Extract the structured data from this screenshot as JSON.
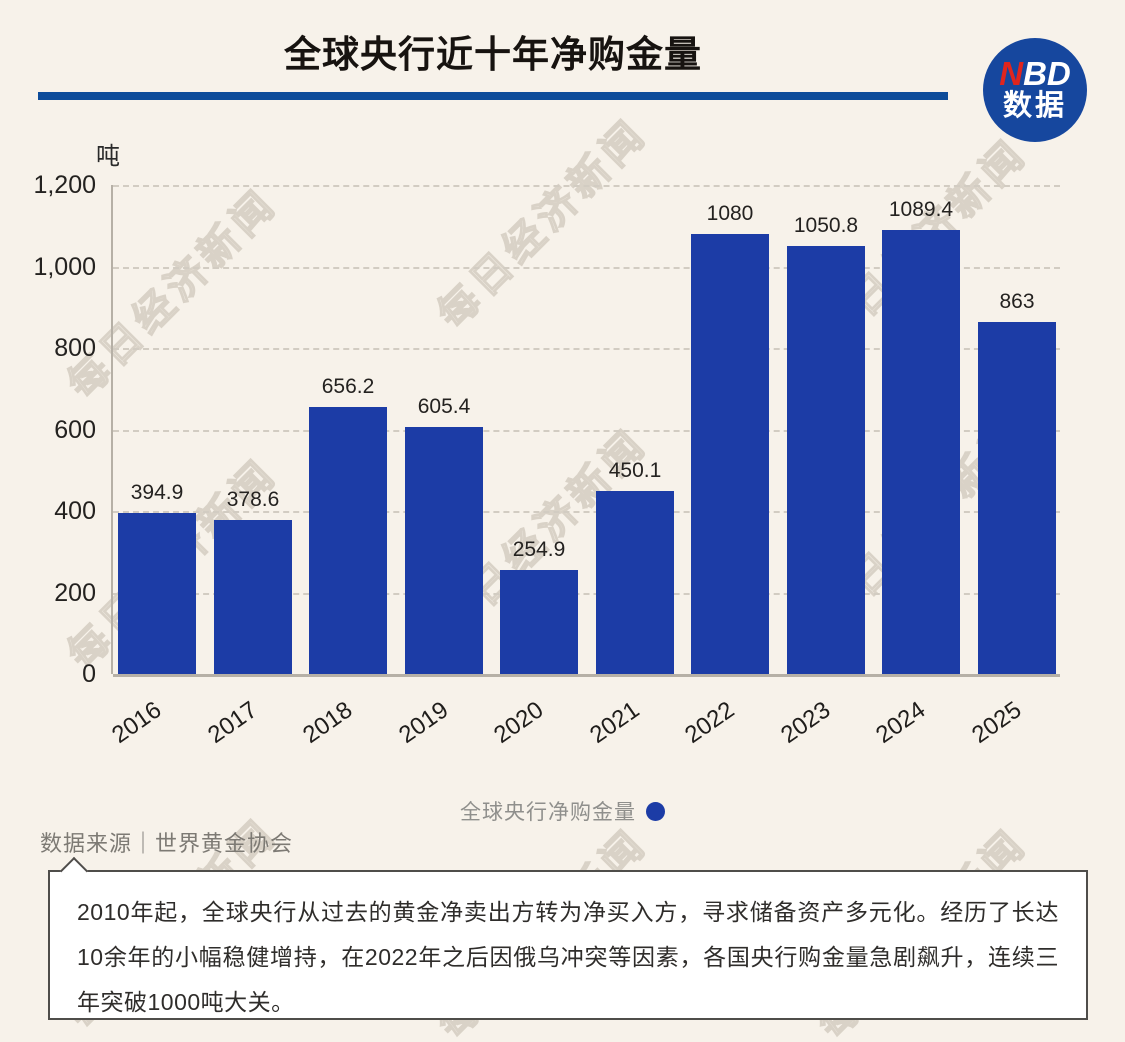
{
  "header": {
    "title": "全球央行近十年净购金量"
  },
  "logo": {
    "line1_red": "N",
    "line1_rest": "BD",
    "line2": "数据"
  },
  "watermark": {
    "text": "每日经济新闻"
  },
  "chart_data": {
    "type": "bar",
    "title": "全球央行近十年净购金量",
    "unit_label": "吨",
    "xlabel": "",
    "ylabel": "吨",
    "categories": [
      "2016",
      "2017",
      "2018",
      "2019",
      "2020",
      "2021",
      "2022",
      "2023",
      "2024",
      "2025"
    ],
    "values": [
      394.9,
      378.6,
      656.2,
      605.4,
      254.9,
      450.1,
      1080,
      1050.8,
      1089.4,
      863
    ],
    "value_labels": [
      "394.9",
      "378.6",
      "656.2",
      "605.4",
      "254.9",
      "450.1",
      "1080",
      "1050.8",
      "1089.4",
      "863"
    ],
    "ylim": [
      0,
      1200
    ],
    "y_ticks": [
      {
        "label": "0",
        "value": 0
      },
      {
        "label": "200",
        "value": 200
      },
      {
        "label": "400",
        "value": 400
      },
      {
        "label": "600",
        "value": 600
      },
      {
        "label": "800",
        "value": 800
      },
      {
        "label": "1,000",
        "value": 1000
      },
      {
        "label": "1,200",
        "value": 1200
      }
    ],
    "grid": true,
    "legend_position": "bottom",
    "series_name": "全球央行净购金量",
    "bar_color": "#1C3CA6"
  },
  "legend": {
    "label": "全球央行净购金量",
    "dot_color": "#1C3CA6"
  },
  "source": {
    "text": "数据来源｜世界黄金协会"
  },
  "note": {
    "text": "2010年起，全球央行从过去的黄金净卖出方转为净买入方，寻求储备资产多元化。经历了长达10余年的小幅稳健增持，在2022年之后因俄乌冲突等因素，各国央行购金量急剧飙升，连续三年突破1000吨大关。"
  },
  "colors": {
    "background": "#F7F2EA",
    "bar": "#1C3CA6",
    "rule": "#0D4C9A",
    "logo_circle": "#16479E",
    "logo_n_red": "#E0251E",
    "legend_text": "#8F8F8C",
    "note_border": "#4F4D4A"
  }
}
